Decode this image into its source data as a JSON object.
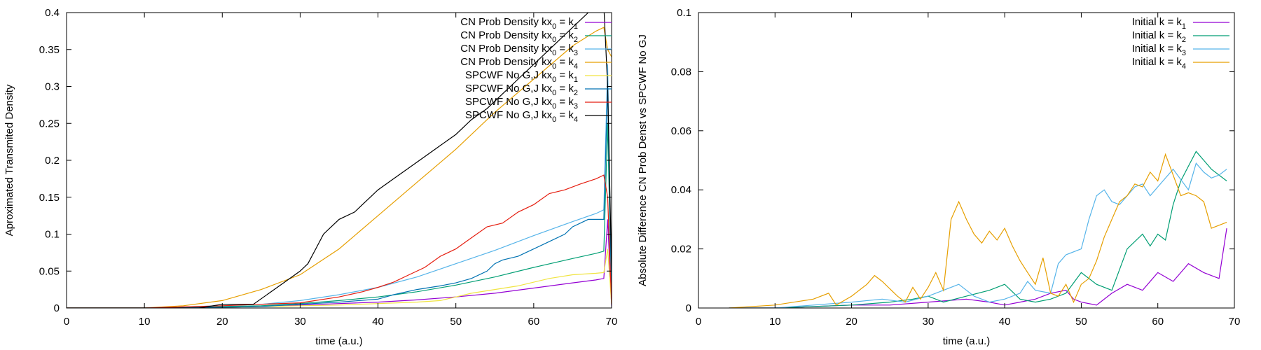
{
  "chart_data": [
    {
      "type": "line",
      "title": "",
      "xlabel": "time (a.u.)",
      "ylabel": "Aproximated Transmited Density",
      "xlim": [
        0,
        70
      ],
      "ylim": [
        0,
        0.4
      ],
      "xticks": [
        0,
        10,
        20,
        30,
        40,
        50,
        60,
        70
      ],
      "yticks": [
        0,
        0.05,
        0.1,
        0.15,
        0.2,
        0.25,
        0.3,
        0.35,
        0.4
      ],
      "yticklabels": [
        "0",
        "0.05",
        "0.1",
        "0.15",
        "0.2",
        "0.25",
        "0.3",
        "0.35",
        "0.4"
      ],
      "grid": false,
      "legend_position": "top-right",
      "series": [
        {
          "legend_main": "CN Prob Density kx",
          "legend_sub0": "0",
          "legend_mid": " = k",
          "legend_sub1": "1",
          "color": "#9400d3",
          "x": [
            0,
            10,
            20,
            25,
            30,
            35,
            40,
            45,
            50,
            55,
            60,
            65,
            68,
            69,
            69.5,
            70
          ],
          "y": [
            0,
            0,
            0.001,
            0.002,
            0.004,
            0.006,
            0.008,
            0.011,
            0.015,
            0.02,
            0.027,
            0.034,
            0.038,
            0.04,
            0.12,
            0.002
          ]
        },
        {
          "legend_main": "CN Prob Density kx",
          "legend_sub0": "0",
          "legend_mid": " = k",
          "legend_sub1": "2",
          "color": "#009e73",
          "x": [
            0,
            10,
            20,
            25,
            30,
            35,
            40,
            45,
            50,
            55,
            60,
            65,
            68,
            69,
            69.5,
            70
          ],
          "y": [
            0,
            0,
            0.002,
            0.003,
            0.006,
            0.01,
            0.015,
            0.022,
            0.031,
            0.042,
            0.055,
            0.067,
            0.074,
            0.077,
            0.25,
            0.005
          ]
        },
        {
          "legend_main": "CN Prob Density kx",
          "legend_sub0": "0",
          "legend_mid": " = k",
          "legend_sub1": "3",
          "color": "#56b4e9",
          "x": [
            0,
            10,
            20,
            25,
            30,
            35,
            40,
            45,
            50,
            55,
            60,
            65,
            68,
            69,
            69.5,
            70
          ],
          "y": [
            0,
            0,
            0.003,
            0.005,
            0.01,
            0.018,
            0.028,
            0.042,
            0.06,
            0.078,
            0.098,
            0.117,
            0.128,
            0.133,
            0.33,
            0.01
          ]
        },
        {
          "legend_main": "CN Prob Density kx",
          "legend_sub0": "0",
          "legend_mid": " = k",
          "legend_sub1": "4",
          "color": "#e69f00",
          "x": [
            0,
            10,
            15,
            20,
            25,
            30,
            35,
            40,
            45,
            50,
            55,
            60,
            65,
            68,
            69,
            69.5,
            70
          ],
          "y": [
            0,
            0,
            0.003,
            0.01,
            0.025,
            0.045,
            0.08,
            0.125,
            0.17,
            0.215,
            0.265,
            0.31,
            0.355,
            0.375,
            0.38,
            0.35,
            0.34
          ]
        },
        {
          "legend_main": "SPCWF No G,J kx",
          "legend_sub0": "0",
          "legend_mid": " = k",
          "legend_sub1": "1",
          "color": "#f0e442",
          "x": [
            0,
            10,
            20,
            25,
            30,
            35,
            40,
            45,
            48,
            50,
            52,
            55,
            58,
            60,
            62,
            65,
            68,
            69,
            69.5,
            70
          ],
          "y": [
            0,
            0,
            0.001,
            0.002,
            0.003,
            0.004,
            0.006,
            0.008,
            0.01,
            0.015,
            0.02,
            0.025,
            0.03,
            0.035,
            0.04,
            0.045,
            0.047,
            0.048,
            0.08,
            0.005
          ]
        },
        {
          "legend_main": "SPCWF No G,J kx",
          "legend_sub0": "0",
          "legend_mid": " = k",
          "legend_sub1": "2",
          "color": "#0072b2",
          "x": [
            0,
            10,
            20,
            25,
            30,
            35,
            40,
            42,
            45,
            48,
            50,
            52,
            54,
            55,
            56,
            58,
            60,
            62,
            64,
            65,
            67,
            69,
            69.5,
            70
          ],
          "y": [
            0,
            0,
            0.001,
            0.002,
            0.005,
            0.008,
            0.012,
            0.018,
            0.025,
            0.03,
            0.034,
            0.04,
            0.05,
            0.06,
            0.065,
            0.07,
            0.08,
            0.09,
            0.1,
            0.11,
            0.12,
            0.12,
            0.3,
            0.01
          ]
        },
        {
          "legend_main": "SPCWF No G,J kx",
          "legend_sub0": "0",
          "legend_mid": " = k",
          "legend_sub1": "3",
          "color": "#e51e10",
          "x": [
            0,
            10,
            20,
            25,
            30,
            35,
            38,
            40,
            42,
            44,
            46,
            48,
            50,
            52,
            54,
            56,
            58,
            60,
            62,
            64,
            66,
            68,
            69,
            69.5,
            70
          ],
          "y": [
            0,
            0,
            0.003,
            0.005,
            0.007,
            0.015,
            0.022,
            0.028,
            0.035,
            0.045,
            0.055,
            0.07,
            0.08,
            0.095,
            0.11,
            0.115,
            0.13,
            0.14,
            0.155,
            0.16,
            0.168,
            0.175,
            0.18,
            0.15,
            0.005
          ]
        },
        {
          "legend_main": "SPCWF No G,J kx",
          "legend_sub0": "0",
          "legend_mid": " = k",
          "legend_sub1": "4",
          "color": "#000000",
          "x": [
            0,
            10,
            17,
            20,
            24,
            26,
            28,
            30,
            31,
            32,
            33,
            35,
            37,
            38,
            40,
            42,
            44,
            46,
            48,
            50,
            52,
            54,
            56,
            58,
            60,
            62,
            64,
            66,
            67,
            68,
            69,
            69.5,
            70
          ],
          "y": [
            0,
            0,
            0,
            0.005,
            0.005,
            0.02,
            0.035,
            0.05,
            0.06,
            0.08,
            0.1,
            0.12,
            0.13,
            0.14,
            0.16,
            0.175,
            0.19,
            0.205,
            0.22,
            0.235,
            0.255,
            0.27,
            0.29,
            0.31,
            0.33,
            0.35,
            0.37,
            0.39,
            0.4,
            0.405,
            0.41,
            0.3,
            0.05
          ]
        }
      ]
    },
    {
      "type": "line",
      "title": "",
      "xlabel": "time (a.u.)",
      "ylabel": "Absolute Difference CN Prob Denst vs SPCWF No GJ",
      "xlim": [
        0,
        70
      ],
      "ylim": [
        0,
        0.1
      ],
      "xticks": [
        0,
        10,
        20,
        30,
        40,
        50,
        60,
        70
      ],
      "yticks": [
        0,
        0.02,
        0.04,
        0.06,
        0.08,
        0.1
      ],
      "yticklabels": [
        "0",
        "0.02",
        "0.04",
        "0.06",
        "0.08",
        "0.1"
      ],
      "grid": false,
      "legend_position": "top-right",
      "series": [
        {
          "legend_main": "Initial k = k",
          "legend_sub0": "",
          "legend_mid": "",
          "legend_sub1": "1",
          "color": "#9400d3",
          "x": [
            4,
            10,
            20,
            25,
            30,
            35,
            38,
            40,
            42,
            44,
            46,
            48,
            49,
            50,
            52,
            54,
            56,
            58,
            60,
            62,
            64,
            66,
            68,
            69
          ],
          "y": [
            0,
            0,
            0.001,
            0.001,
            0.002,
            0.003,
            0.002,
            0.001,
            0.002,
            0.003,
            0.005,
            0.006,
            0.003,
            0.002,
            0.001,
            0.005,
            0.008,
            0.006,
            0.012,
            0.009,
            0.015,
            0.012,
            0.01,
            0.027
          ]
        },
        {
          "legend_main": "Initial k = k",
          "legend_sub0": "",
          "legend_mid": "",
          "legend_sub1": "2",
          "color": "#009e73",
          "x": [
            4,
            10,
            20,
            25,
            28,
            30,
            32,
            35,
            38,
            40,
            42,
            44,
            46,
            48,
            50,
            52,
            54,
            56,
            58,
            59,
            60,
            61,
            62,
            63,
            64,
            65,
            66,
            67,
            68,
            69
          ],
          "y": [
            0,
            0,
            0.001,
            0.002,
            0.003,
            0.004,
            0.002,
            0.004,
            0.006,
            0.008,
            0.003,
            0.002,
            0.003,
            0.005,
            0.012,
            0.008,
            0.006,
            0.02,
            0.025,
            0.021,
            0.025,
            0.023,
            0.035,
            0.043,
            0.048,
            0.053,
            0.05,
            0.047,
            0.045,
            0.043
          ]
        },
        {
          "legend_main": "Initial k = k",
          "legend_sub0": "",
          "legend_mid": "",
          "legend_sub1": "3",
          "color": "#56b4e9",
          "x": [
            4,
            10,
            20,
            24,
            27,
            30,
            32,
            34,
            36,
            38,
            40,
            42,
            43,
            44,
            46,
            47,
            48,
            50,
            51,
            52,
            53,
            54,
            55,
            56,
            57,
            58,
            59,
            60,
            62,
            64,
            65,
            66,
            67,
            68,
            69
          ],
          "y": [
            0,
            0,
            0.002,
            0.003,
            0.002,
            0.004,
            0.006,
            0.008,
            0.004,
            0.002,
            0.003,
            0.005,
            0.009,
            0.006,
            0.005,
            0.015,
            0.018,
            0.02,
            0.03,
            0.038,
            0.04,
            0.036,
            0.035,
            0.038,
            0.041,
            0.042,
            0.038,
            0.041,
            0.047,
            0.04,
            0.049,
            0.046,
            0.044,
            0.045,
            0.047
          ]
        },
        {
          "legend_main": "Initial k = k",
          "legend_sub0": "",
          "legend_mid": "",
          "legend_sub1": "4",
          "color": "#e69f00",
          "x": [
            4,
            10,
            15,
            17,
            18,
            20,
            22,
            23,
            24,
            26,
            27,
            28,
            29,
            30,
            31,
            32,
            33,
            34,
            35,
            36,
            37,
            38,
            39,
            40,
            41,
            42,
            43,
            44,
            45,
            46,
            47,
            48,
            49,
            50,
            51,
            52,
            53,
            54,
            55,
            56,
            57,
            58,
            59,
            60,
            61,
            62,
            63,
            64,
            65,
            66,
            67,
            68,
            69
          ],
          "y": [
            0,
            0.001,
            0.003,
            0.005,
            0.001,
            0.004,
            0.008,
            0.011,
            0.009,
            0.004,
            0.002,
            0.007,
            0.003,
            0.007,
            0.012,
            0.006,
            0.03,
            0.036,
            0.03,
            0.025,
            0.022,
            0.026,
            0.023,
            0.027,
            0.021,
            0.016,
            0.012,
            0.008,
            0.017,
            0.005,
            0.004,
            0.008,
            0.002,
            0.008,
            0.01,
            0.016,
            0.024,
            0.03,
            0.036,
            0.038,
            0.042,
            0.041,
            0.046,
            0.043,
            0.052,
            0.045,
            0.038,
            0.039,
            0.038,
            0.036,
            0.027,
            0.028,
            0.029
          ]
        }
      ]
    }
  ]
}
